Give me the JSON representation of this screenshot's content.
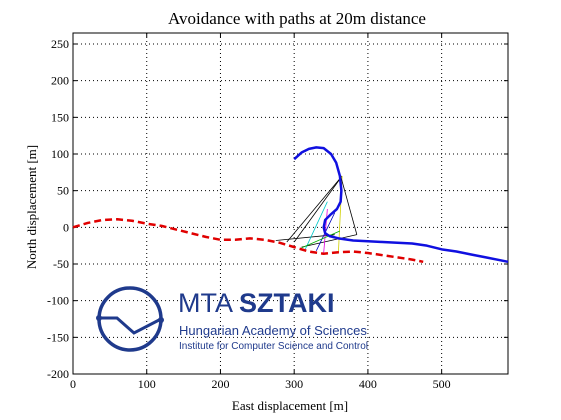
{
  "chart_data": {
    "type": "line",
    "title": "Avoidance with paths at 20m distance",
    "xlabel": "East displacement [m]",
    "ylabel": "North displacement [m]",
    "xlim": [
      0,
      590
    ],
    "ylim": [
      -200,
      265
    ],
    "xticks": [
      0,
      100,
      200,
      300,
      400,
      500
    ],
    "yticks": [
      -200,
      -150,
      -100,
      -50,
      0,
      50,
      100,
      150,
      200,
      250
    ],
    "grid": "dotted",
    "series": [
      {
        "style": "dashed",
        "color": "#e00000",
        "x": [
          0,
          20,
          40,
          60,
          80,
          100,
          120,
          140,
          160,
          180,
          200,
          220,
          240,
          260,
          280,
          300,
          320,
          340,
          360,
          380,
          400,
          420,
          440,
          460,
          475
        ],
        "y": [
          0,
          6,
          10,
          11,
          9,
          5,
          2,
          -3,
          -8,
          -13,
          -17,
          -17,
          -15,
          -17,
          -21,
          -27,
          -33,
          -36,
          -34,
          -33,
          -35,
          -38,
          -41,
          -44,
          -47
        ]
      },
      {
        "style": "solid",
        "color": "#1010e0",
        "x": [
          300,
          310,
          320,
          330,
          340,
          350,
          357,
          362,
          364,
          363,
          358,
          350,
          342,
          340,
          342,
          348,
          360,
          380,
          400,
          420,
          440,
          460,
          480,
          500,
          520,
          540,
          560,
          580,
          590
        ],
        "y": [
          93,
          102,
          107,
          109,
          108,
          100,
          88,
          70,
          50,
          35,
          25,
          18,
          10,
          0,
          -8,
          -12,
          -15,
          -18,
          -19,
          -20,
          -21,
          -22,
          -25,
          -30,
          -33,
          -37,
          -41,
          -45,
          -47
        ]
      }
    ],
    "lines": [
      {
        "color": "#000000",
        "x": [
          300,
          365
        ],
        "y": [
          -20,
          70
        ]
      },
      {
        "color": "#000000",
        "x": [
          290,
          365
        ],
        "y": [
          -20,
          70
        ]
      },
      {
        "color": "#000000",
        "x": [
          275,
          355
        ],
        "y": [
          -18,
          -10
        ]
      },
      {
        "color": "#000000",
        "x": [
          310,
          385
        ],
        "y": [
          -27,
          -10
        ]
      },
      {
        "color": "#00c8c8",
        "x": [
          315,
          345
        ],
        "y": [
          -30,
          35
        ]
      },
      {
        "color": "#0000c0",
        "x": [
          330,
          355
        ],
        "y": [
          -32,
          20
        ]
      },
      {
        "color": "#e000e0",
        "x": [
          340,
          345
        ],
        "y": [
          -35,
          25
        ]
      },
      {
        "color": "#d0d000",
        "x": [
          360,
          365
        ],
        "y": [
          -34,
          70
        ]
      },
      {
        "color": "#00b000",
        "x": [
          310,
          362
        ],
        "y": [
          -28,
          -5
        ]
      },
      {
        "color": "#000000",
        "x": [
          363,
          385
        ],
        "y": [
          70,
          -10
        ]
      }
    ]
  },
  "logo": {
    "name": "MTA",
    "name_bold": "SZTAKI",
    "line1": "Hungarian Academy of Sciences",
    "line2": "Institute for Computer Science and Control",
    "color": "#1f3a8c"
  }
}
